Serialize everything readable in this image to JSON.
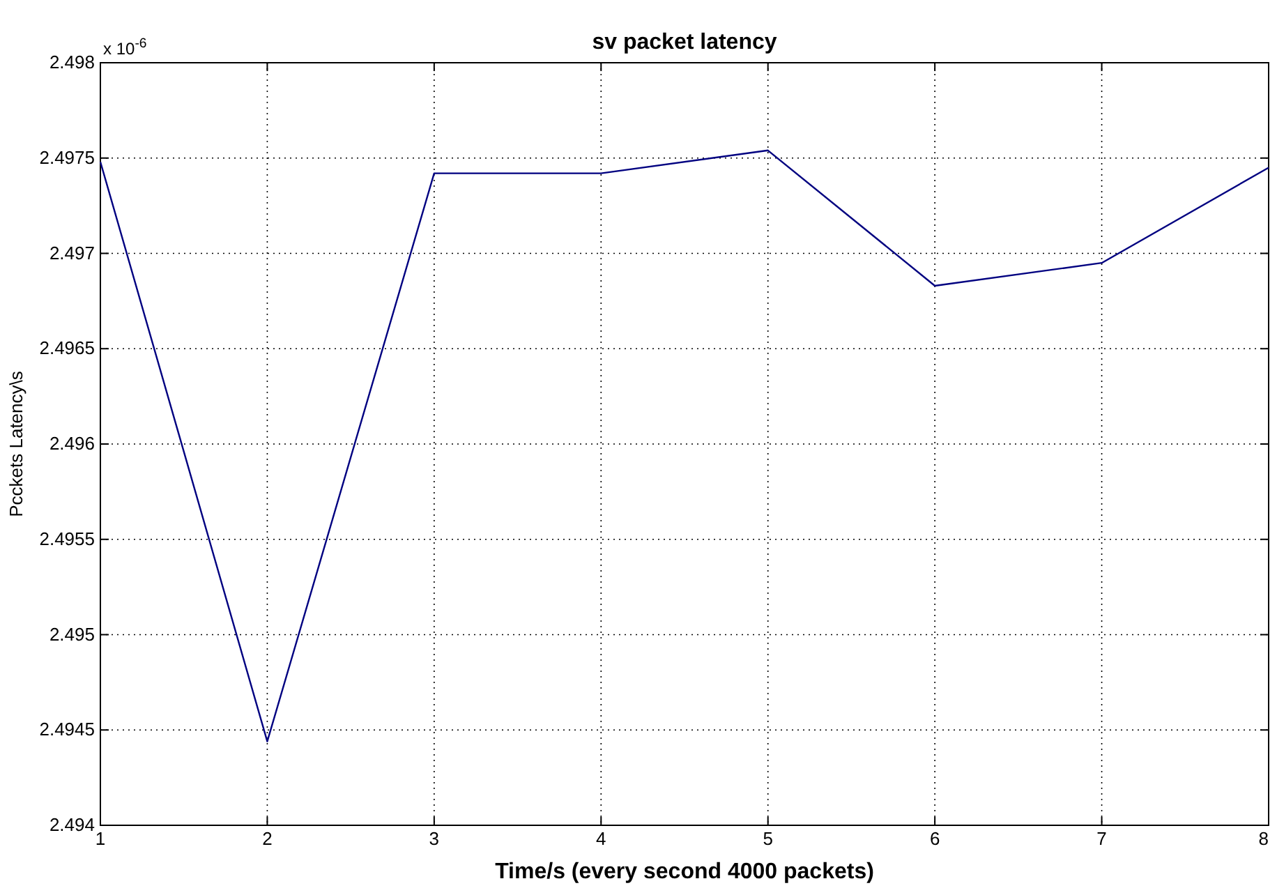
{
  "chart_data": {
    "type": "line",
    "title": "sv packet latency",
    "xlabel": "Time/s (every second 4000 packets)",
    "ylabel": "Pcckets Latency\\s",
    "annotations": [
      "x 10$^{-6}$"
    ],
    "x": [
      1,
      2,
      3,
      4,
      5,
      6,
      7,
      8
    ],
    "series": [
      {
        "color": "#000080",
        "values": [
          2.49748,
          2.49444,
          2.49742,
          2.49742,
          2.49754,
          2.49683,
          2.49695,
          2.49745
        ]
      }
    ],
    "xlim": [
      1,
      8
    ],
    "xticks": [
      1,
      2,
      3,
      4,
      5,
      6,
      7,
      8
    ],
    "ylim": [
      2.494,
      2.498
    ],
    "yticks": [
      2.494,
      2.4945,
      2.495,
      2.4955,
      2.496,
      2.4965,
      2.497,
      2.4975,
      2.498
    ],
    "grid": true,
    "line_style": "solid"
  }
}
